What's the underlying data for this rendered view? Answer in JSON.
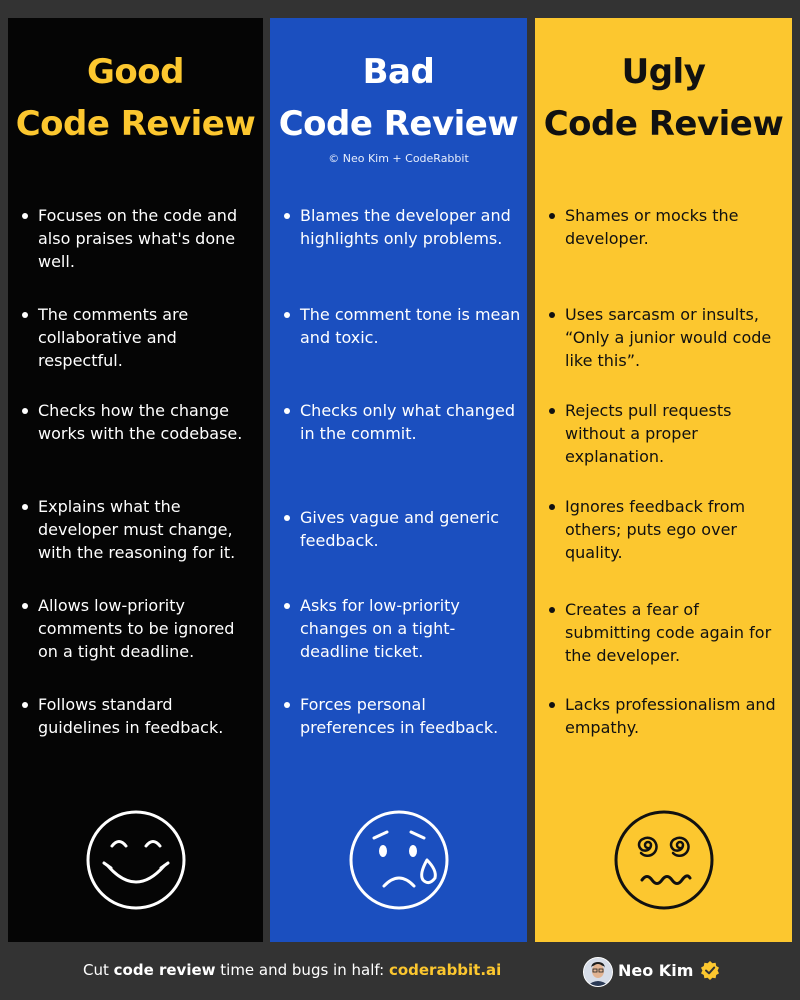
{
  "columns": {
    "good": {
      "title_line1": "Good",
      "title_line2": "Code Review",
      "face_icon": "smiling-face-icon",
      "items": [
        "Focuses on the code and also praises what's done well.",
        "The comments are collaborative and respectful.",
        "Checks how the change works with the codebase.",
        "Explains what the developer must change, with the reasoning for it.",
        "Allows low-priority comments to be ignored on a tight deadline.",
        "Follows standard guidelines in feedback."
      ]
    },
    "bad": {
      "title_line1": "Bad",
      "title_line2": "Code Review",
      "credit": "© Neo Kim + CodeRabbit",
      "face_icon": "crying-face-icon",
      "items": [
        "Blames the developer and highlights only problems.",
        "The comment tone is mean and toxic.",
        "Checks only what changed in the commit.",
        "Gives vague and generic feedback.",
        "Asks for low-priority changes on a tight-deadline ticket.",
        "Forces personal preferences in feedback."
      ]
    },
    "ugly": {
      "title_line1": "Ugly",
      "title_line2": "Code Review",
      "face_icon": "dizzy-face-icon",
      "items": [
        "Shames or mocks the developer.",
        "Uses sarcasm or insults, “Only a junior would code like this”.",
        "Rejects pull requests without a proper explanation.",
        "Ignores feedback from others; puts ego over quality.",
        "Creates a fear of submitting code again for the developer.",
        "Lacks professionalism and empathy."
      ]
    }
  },
  "footer": {
    "text_prefix": "Cut ",
    "text_bold": "code review",
    "text_middle": " time and bugs in half: ",
    "link": "coderabbit.ai",
    "author": "Neo Kim",
    "avatar_icon": "avatar",
    "verified_icon": "verified-badge-icon"
  },
  "colors": {
    "good_bg": "#050505",
    "bad_bg": "#1b4fbf",
    "ugly_bg": "#fcc72f",
    "accent_yellow": "#fcc72f",
    "page_bg": "#333333"
  }
}
